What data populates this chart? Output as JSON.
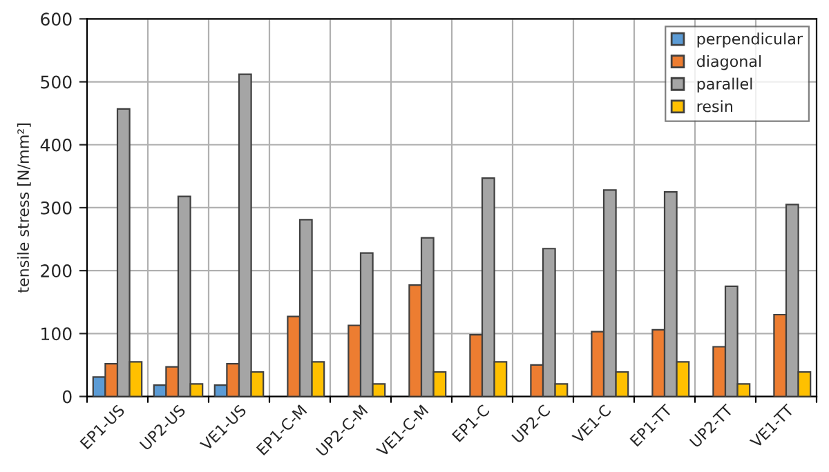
{
  "chart_data": {
    "type": "bar",
    "ylabel": "tensile stress [N/mm²]",
    "categories": [
      "EP1-US",
      "UP2-US",
      "VE1-US",
      "EP1-C-M",
      "UP2-C-M",
      "VE1-C-M",
      "EP1-C",
      "UP2-C",
      "VE1-C",
      "EP1-TT",
      "UP2-TT",
      "VE1-TT"
    ],
    "series": [
      {
        "name": "perpendicular",
        "color": "#5b9bd5",
        "values": [
          31,
          18,
          18,
          null,
          null,
          null,
          null,
          null,
          null,
          null,
          null,
          null
        ]
      },
      {
        "name": "diagonal",
        "color": "#ed7d31",
        "values": [
          52,
          47,
          52,
          127,
          113,
          177,
          98,
          50,
          103,
          106,
          79,
          130
        ]
      },
      {
        "name": "parallel",
        "color": "#a5a5a5",
        "values": [
          457,
          318,
          512,
          281,
          228,
          252,
          347,
          235,
          328,
          325,
          175,
          305
        ]
      },
      {
        "name": "resin",
        "color": "#ffc000",
        "values": [
          55,
          20,
          39,
          55,
          20,
          39,
          55,
          20,
          39,
          55,
          20,
          39
        ]
      }
    ],
    "ylim": [
      0,
      600
    ],
    "yticks": [
      0,
      100,
      200,
      300,
      400,
      500,
      600
    ],
    "grid": true,
    "legend": "top right"
  }
}
